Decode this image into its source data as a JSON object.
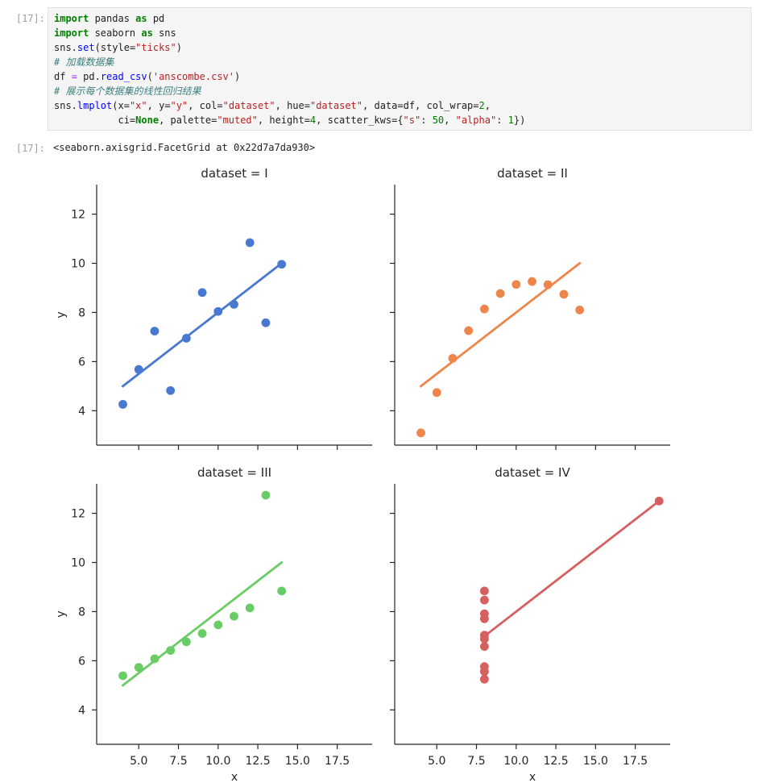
{
  "in_prompt": "[17]:",
  "out_prompt": "[17]:",
  "code": {
    "l1": {
      "k1": "import",
      "t1": " pandas ",
      "k2": "as",
      "t2": " pd"
    },
    "l2": {
      "k1": "import",
      "t1": " seaborn ",
      "k2": "as",
      "t2": " sns"
    },
    "l3": {
      "t1": "sns.",
      "f1": "set",
      "t2": "(style=",
      "s1": "\"ticks\"",
      "t3": ")"
    },
    "l4": {
      "c1": "# 加载数据集"
    },
    "l5": {
      "t1": "df ",
      "o1": "=",
      "t2": " pd.",
      "f1": "read_csv",
      "t3": "(",
      "s1": "'anscombe.csv'",
      "t4": ")"
    },
    "l6": {
      "c1": "# 展示每个数据集的线性回归结果"
    },
    "l7": {
      "t1": "sns.",
      "f1": "lmplot",
      "t2": "(x=",
      "s1": "\"x\"",
      "t3": ", y=",
      "s2": "\"y\"",
      "t4": ", col=",
      "s3": "\"dataset\"",
      "t5": ", hue=",
      "s4": "\"dataset\"",
      "t6": ", data=df, col_wrap=",
      "n1": "2",
      "t7": ","
    },
    "l8": {
      "t1": "           ci=",
      "k1": "None",
      "t2": ", palette=",
      "s1": "\"muted\"",
      "t3": ", height=",
      "n1": "4",
      "t4": ", scatter_kws=",
      "b1": "{",
      "s2": "\"s\"",
      "t5": ": ",
      "n2": "50",
      "t6": ", ",
      "s3": "\"alpha\"",
      "t7": ": ",
      "n3": "1",
      "b2": "}",
      "t8": ")"
    }
  },
  "output_text": "<seaborn.axisgrid.FacetGrid at 0x22d7a7da930>",
  "chart_data": {
    "type": "scatter",
    "xlabel": "x",
    "ylabel": "y",
    "xticks": [
      "5.0",
      "7.5",
      "10.0",
      "12.5",
      "15.0",
      "17.5"
    ],
    "yticks": [
      "4",
      "6",
      "8",
      "10",
      "12"
    ],
    "facets": [
      {
        "title": "dataset = I",
        "color": "#4878d0",
        "x": [
          10,
          8,
          13,
          9,
          11,
          14,
          6,
          4,
          12,
          7,
          5
        ],
        "y": [
          8.04,
          6.95,
          7.58,
          8.81,
          8.33,
          9.96,
          7.24,
          4.26,
          10.84,
          4.82,
          5.68
        ],
        "line": [
          [
            4,
            5.0
          ],
          [
            14,
            10.0
          ]
        ]
      },
      {
        "title": "dataset = II",
        "color": "#ee854a",
        "x": [
          10,
          8,
          13,
          9,
          11,
          14,
          6,
          4,
          12,
          7,
          5
        ],
        "y": [
          9.14,
          8.14,
          8.74,
          8.77,
          9.26,
          8.1,
          6.13,
          3.1,
          9.13,
          7.26,
          4.74
        ],
        "line": [
          [
            4,
            5.0
          ],
          [
            14,
            10.0
          ]
        ]
      },
      {
        "title": "dataset = III",
        "color": "#6acc64",
        "x": [
          10,
          8,
          13,
          9,
          11,
          14,
          6,
          4,
          12,
          7,
          5
        ],
        "y": [
          7.46,
          6.77,
          12.74,
          7.11,
          7.81,
          8.84,
          6.08,
          5.39,
          8.15,
          6.42,
          5.73
        ],
        "line": [
          [
            4,
            5.0
          ],
          [
            14,
            10.0
          ]
        ]
      },
      {
        "title": "dataset = IV",
        "color": "#d65f5f",
        "x": [
          8,
          8,
          8,
          8,
          8,
          8,
          8,
          19,
          8,
          8,
          8
        ],
        "y": [
          6.58,
          5.76,
          7.71,
          8.84,
          8.47,
          7.04,
          5.25,
          12.5,
          5.56,
          7.91,
          6.89
        ],
        "line": [
          [
            8,
            7.0
          ],
          [
            19,
            12.5
          ]
        ]
      }
    ]
  }
}
